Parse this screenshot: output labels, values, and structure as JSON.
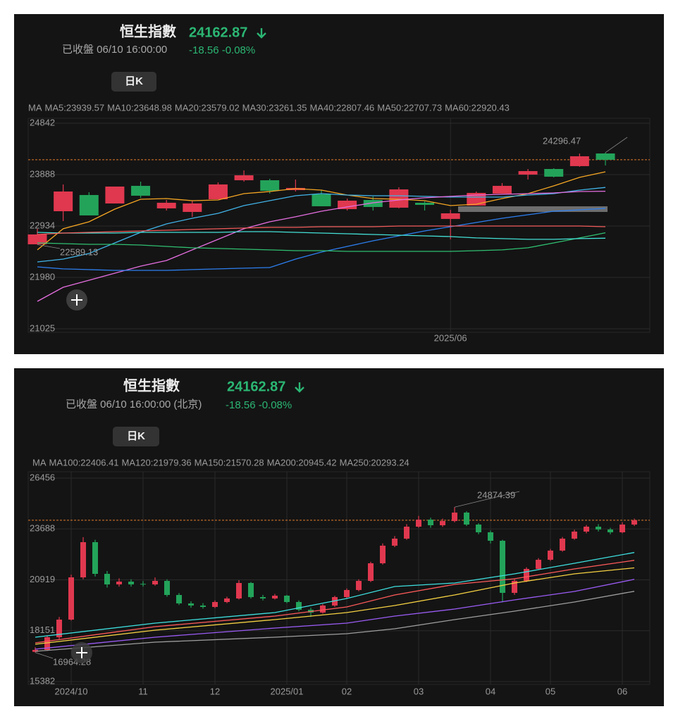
{
  "panels": [
    {
      "title": "恒生指數",
      "price": "24162.87",
      "status": "已收盤 06/10 16:00:00",
      "change": "-18.56 -0.08%",
      "period": "日K",
      "ma_label": "MA"
    },
    {
      "title": "恒生指數",
      "price": "24162.87",
      "status": "已收盤 06/10 16:00:00 (北京)",
      "change": "-18.56 -0.08%",
      "period": "日K",
      "ma_label": "MA"
    }
  ],
  "chart_data": [
    {
      "type": "candlestick",
      "up_color": "#e0384f",
      "down_color": "#23a35a",
      "grid": true,
      "ylim": [
        20960,
        24933
      ],
      "yticks": [
        24842,
        23888,
        22934,
        21980,
        21025
      ],
      "categories": [
        null,
        null,
        null,
        null,
        null,
        null,
        null,
        null,
        null,
        null,
        null,
        null,
        null,
        null,
        null,
        null,
        "2025/06",
        null,
        null,
        null,
        null,
        null,
        null
      ],
      "ohlc": [
        [
          22594,
          22882,
          22589.13,
          22777
        ],
        [
          23208,
          23705,
          23025,
          23574
        ],
        [
          23509,
          23561,
          23130,
          23130
        ],
        [
          23352,
          23666,
          23352,
          23666
        ],
        [
          23679,
          23757,
          23457,
          23496
        ],
        [
          23261,
          23417,
          23221,
          23365
        ],
        [
          23195,
          23404,
          23104,
          23352
        ],
        [
          23430,
          23744,
          23430,
          23705
        ],
        [
          23783,
          23966,
          23757,
          23875
        ],
        [
          23783,
          23809,
          23535,
          23587
        ],
        [
          23600,
          23796,
          23574,
          23640
        ],
        [
          23522,
          23600,
          23300,
          23300
        ],
        [
          23247,
          23443,
          23221,
          23404
        ],
        [
          23417,
          23483,
          23221,
          23287
        ],
        [
          23274,
          23653,
          23261,
          23613
        ],
        [
          23365,
          23391,
          23221,
          23326
        ],
        [
          23065,
          23234,
          22686,
          23169
        ],
        [
          23313,
          23574,
          23313,
          23548
        ],
        [
          23535,
          23731,
          23535,
          23679
        ],
        [
          23888,
          23992,
          23796,
          23953
        ],
        [
          23992,
          24006,
          23836,
          23849
        ],
        [
          24045,
          24280,
          24032,
          24228
        ],
        [
          24280,
          24296.47,
          24058,
          24162.87
        ]
      ],
      "series": [
        {
          "name": "MA5:23939.57",
          "color": "#f5a623",
          "values": [
            22490,
            22882,
            23012,
            23247,
            23430,
            23443,
            23404,
            23417,
            23535,
            23574,
            23627,
            23600,
            23509,
            23443,
            23430,
            23404,
            23313,
            23339,
            23443,
            23535,
            23679,
            23836,
            23939.57
          ]
        },
        {
          "name": "MA10:23648.98",
          "color": "#41b3e8",
          "values": [
            22267,
            22319,
            22424,
            22620,
            22816,
            22973,
            23077,
            23169,
            23313,
            23404,
            23496,
            23535,
            23509,
            23496,
            23496,
            23483,
            23470,
            23470,
            23470,
            23509,
            23535,
            23600,
            23648.98
          ]
        },
        {
          "name": "MA20:23579.02",
          "color": "#e56ee0",
          "values": [
            21535,
            21797,
            21927,
            22058,
            22189,
            22293,
            22490,
            22686,
            22882,
            23012,
            23104,
            23208,
            23287,
            23365,
            23417,
            23457,
            23483,
            23509,
            23522,
            23535,
            23548,
            23574,
            23579.02
          ]
        },
        {
          "name": "MA30:23261.35",
          "color": "#2d7ff0",
          "values": [
            22176,
            22137,
            22124,
            22110,
            22110,
            22110,
            22124,
            22137,
            22150,
            22162,
            22319,
            22450,
            22555,
            22659,
            22751,
            22842,
            22921,
            22999,
            23077,
            23143,
            23208,
            23234,
            23261.35
          ]
        },
        {
          "name": "MA40:22807.46",
          "color": "#2fbf71",
          "values": [
            22620,
            22607,
            22594,
            22594,
            22581,
            22555,
            22529,
            22516,
            22503,
            22490,
            22476,
            22476,
            22463,
            22463,
            22463,
            22463,
            22463,
            22476,
            22490,
            22529,
            22620,
            22712,
            22807.46
          ]
        },
        {
          "name": "MA50:22707.73",
          "color": "#43e0d6",
          "values": [
            22816,
            22803,
            22803,
            22803,
            22816,
            22816,
            22816,
            22816,
            22829,
            22829,
            22816,
            22803,
            22790,
            22777,
            22764,
            22751,
            22738,
            22712,
            22699,
            22686,
            22686,
            22699,
            22707.73
          ]
        },
        {
          "name": "MA60:22920.43",
          "color": "#f25a5a",
          "values": [
            22777,
            22803,
            22816,
            22829,
            22842,
            22855,
            22869,
            22882,
            22895,
            22908,
            22908,
            22921,
            22921,
            22921,
            22934,
            22934,
            22934,
            22934,
            22934,
            22934,
            22934,
            22934,
            22920.43
          ]
        }
      ],
      "annotations": [
        "24296.47",
        "22589.13"
      ]
    },
    {
      "type": "candlestick",
      "up_color": "#e0384f",
      "down_color": "#23a35a",
      "grid": true,
      "ylim": [
        15229,
        26801
      ],
      "yticks": [
        26456,
        23688,
        20919,
        18151,
        15382
      ],
      "categories": [
        null,
        null,
        null,
        "2024/10",
        null,
        null,
        null,
        null,
        null,
        "11",
        null,
        null,
        null,
        null,
        null,
        "12",
        null,
        null,
        null,
        null,
        null,
        "2025/01",
        null,
        null,
        null,
        null,
        "02",
        null,
        null,
        null,
        null,
        null,
        "03",
        null,
        null,
        null,
        null,
        null,
        "04",
        null,
        null,
        null,
        null,
        "05",
        null,
        null,
        null,
        null,
        null,
        "06",
        null
      ],
      "ohlc": [
        [
          17000,
          17250,
          16964.28,
          17106
        ],
        [
          17106,
          17900,
          17050,
          17796
        ],
        [
          17796,
          18900,
          17700,
          18754
        ],
        [
          18754,
          21200,
          18700,
          21053
        ],
        [
          21053,
          23241,
          20950,
          22969
        ],
        [
          22969,
          23100,
          21100,
          21245
        ],
        [
          21245,
          21400,
          20500,
          20670
        ],
        [
          20670,
          21000,
          20550,
          20823
        ],
        [
          20823,
          20950,
          20550,
          20670
        ],
        [
          20700,
          20850,
          20550,
          20670
        ],
        [
          20670,
          21050,
          20600,
          20862
        ],
        [
          20862,
          20950,
          20000,
          20095
        ],
        [
          20095,
          20200,
          19550,
          19636
        ],
        [
          19636,
          19750,
          19400,
          19521
        ],
        [
          19521,
          19650,
          19350,
          19444
        ],
        [
          19444,
          19800,
          19380,
          19712
        ],
        [
          19712,
          20000,
          19650,
          19904
        ],
        [
          19904,
          20900,
          19850,
          20747
        ],
        [
          20747,
          20800,
          19900,
          19980
        ],
        [
          19980,
          20100,
          19800,
          19904
        ],
        [
          19904,
          20150,
          19850,
          20057
        ],
        [
          20057,
          20100,
          19650,
          19712
        ],
        [
          19712,
          19800,
          19200,
          19291
        ],
        [
          19291,
          19400,
          18900,
          19137
        ],
        [
          19137,
          19600,
          19080,
          19521
        ],
        [
          19521,
          20050,
          19450,
          19980
        ],
        [
          19980,
          20450,
          19900,
          20364
        ],
        [
          20364,
          20950,
          20300,
          20862
        ],
        [
          20862,
          21900,
          20800,
          21820
        ],
        [
          21820,
          22900,
          21750,
          22778
        ],
        [
          22778,
          23300,
          22700,
          23161
        ],
        [
          23161,
          23950,
          23100,
          23812
        ],
        [
          23812,
          24400,
          23750,
          24196
        ],
        [
          24196,
          24300,
          23750,
          23889
        ],
        [
          23889,
          24250,
          23800,
          24119
        ],
        [
          24119,
          24874.39,
          24050,
          24579
        ],
        [
          24579,
          24650,
          23850,
          23927
        ],
        [
          23927,
          24000,
          23400,
          23506
        ],
        [
          23506,
          23600,
          22900,
          23046
        ],
        [
          23046,
          23100,
          19700,
          20210
        ],
        [
          20210,
          21000,
          20100,
          20862
        ],
        [
          20862,
          21600,
          20800,
          21513
        ],
        [
          21513,
          22100,
          21450,
          22011
        ],
        [
          22011,
          22600,
          21950,
          22510
        ],
        [
          22510,
          23250,
          22450,
          23161
        ],
        [
          23161,
          23650,
          23100,
          23544
        ],
        [
          23544,
          23900,
          23450,
          23812
        ],
        [
          23812,
          23950,
          23550,
          23659
        ],
        [
          23659,
          23750,
          23400,
          23506
        ],
        [
          23506,
          24050,
          23450,
          23927
        ],
        [
          23927,
          24250,
          23850,
          24162.87
        ]
      ],
      "series": [
        {
          "name": "MA100:22406.41",
          "color": "#3ee0e0",
          "x": [
            0,
            10,
            20,
            26,
            30,
            35,
            40,
            45,
            50
          ],
          "values": [
            17796,
            18563,
            19137,
            19904,
            20555,
            20747,
            21245,
            21820,
            22406.41
          ]
        },
        {
          "name": "MA120:21979.36",
          "color": "#ff5a5a",
          "x": [
            0,
            10,
            20,
            26,
            30,
            35,
            40,
            45,
            50
          ],
          "values": [
            17490,
            18371,
            18946,
            19444,
            20095,
            20670,
            20977,
            21513,
            21979.36
          ]
        },
        {
          "name": "MA150:21570.28",
          "color": "#f5d142",
          "x": [
            0,
            10,
            20,
            26,
            30,
            35,
            40,
            45,
            50
          ],
          "values": [
            17413,
            18179,
            18754,
            19137,
            19521,
            20095,
            20747,
            21245,
            21570.28
          ]
        },
        {
          "name": "MA200:20945.42",
          "color": "#9b5cf6",
          "x": [
            0,
            10,
            20,
            26,
            30,
            35,
            40,
            45,
            50
          ],
          "values": [
            17145,
            17796,
            18294,
            18563,
            18946,
            19329,
            19827,
            20287,
            20945.42
          ]
        },
        {
          "name": "MA250:20293.24",
          "color": "#9e9e9e",
          "x": [
            0,
            10,
            20,
            26,
            30,
            35,
            40,
            45,
            50
          ],
          "values": [
            17030,
            17528,
            17796,
            17988,
            18256,
            18754,
            19214,
            19712,
            20293.24
          ]
        }
      ],
      "annotations": [
        "24874.39",
        "16964.28"
      ]
    }
  ]
}
